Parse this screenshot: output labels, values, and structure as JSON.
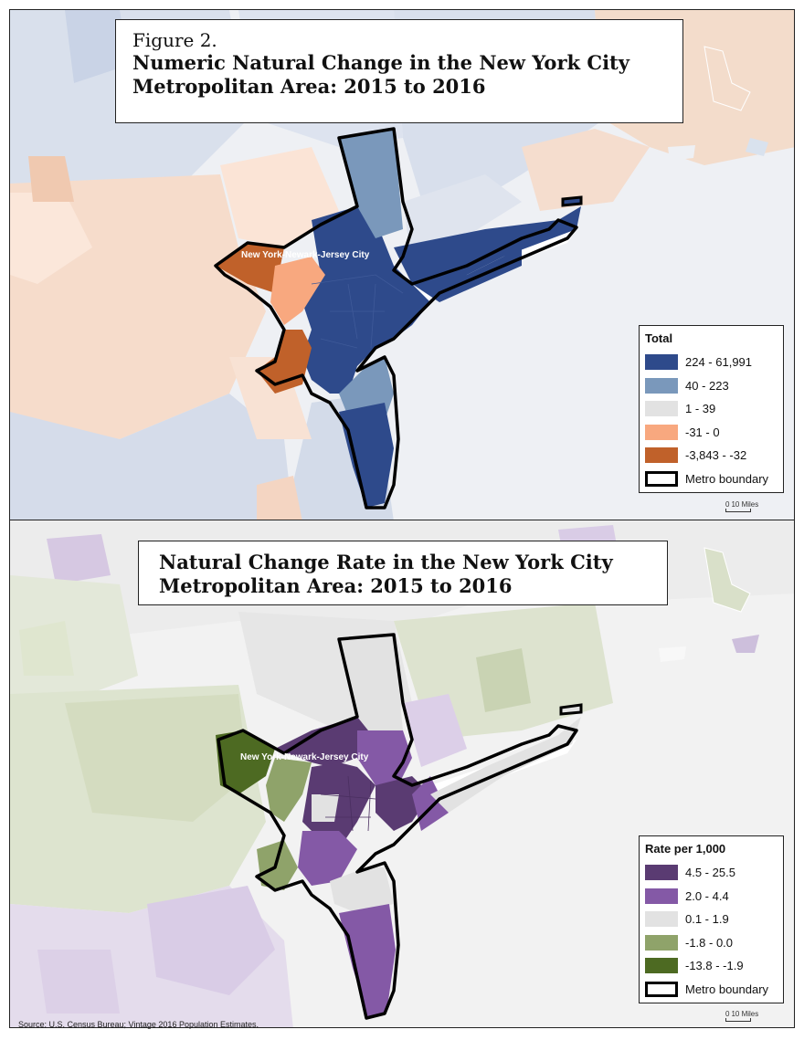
{
  "figure_label": "Figure 2.",
  "maps": [
    {
      "title": "Numeric Natural Change in the New York City Metropolitan Area: 2015 to 2016",
      "metro_label": "New York-Newark-Jersey City",
      "legend": {
        "title": "Total",
        "items": [
          {
            "label": "224 - 61,991",
            "color": "#2e4a8b"
          },
          {
            "label": "40 - 223",
            "color": "#7a98bb"
          },
          {
            "label": "1 - 39",
            "color": "#e2e2e2"
          },
          {
            "label": "-31 - 0",
            "color": "#f8a87f"
          },
          {
            "label": "-3,843 - -32",
            "color": "#c0612a"
          },
          {
            "label": "Metro boundary",
            "color": "#000000"
          }
        ]
      },
      "scalebar": {
        "zero": "0",
        "distance": "10 Miles"
      }
    },
    {
      "title": "Natural Change Rate in the New York City Metropolitan Area: 2015 to 2016",
      "metro_label": "New York-Newark-Jersey City",
      "legend": {
        "title": "Rate per 1,000",
        "items": [
          {
            "label": "4.5 - 25.5",
            "color": "#5a3b72"
          },
          {
            "label": "2.0 - 4.4",
            "color": "#8459a6"
          },
          {
            "label": "0.1 - 1.9",
            "color": "#e2e2e2"
          },
          {
            "label": "-1.8 - 0.0",
            "color": "#8fa36a"
          },
          {
            "label": "-13.8 - -1.9",
            "color": "#4d6a22"
          },
          {
            "label": "Metro boundary",
            "color": "#000000"
          }
        ]
      },
      "scalebar": {
        "zero": "0",
        "distance": "10 Miles"
      }
    }
  ],
  "source": "Source: U.S. Census Bureau; Vintage 2016 Population Estimates."
}
